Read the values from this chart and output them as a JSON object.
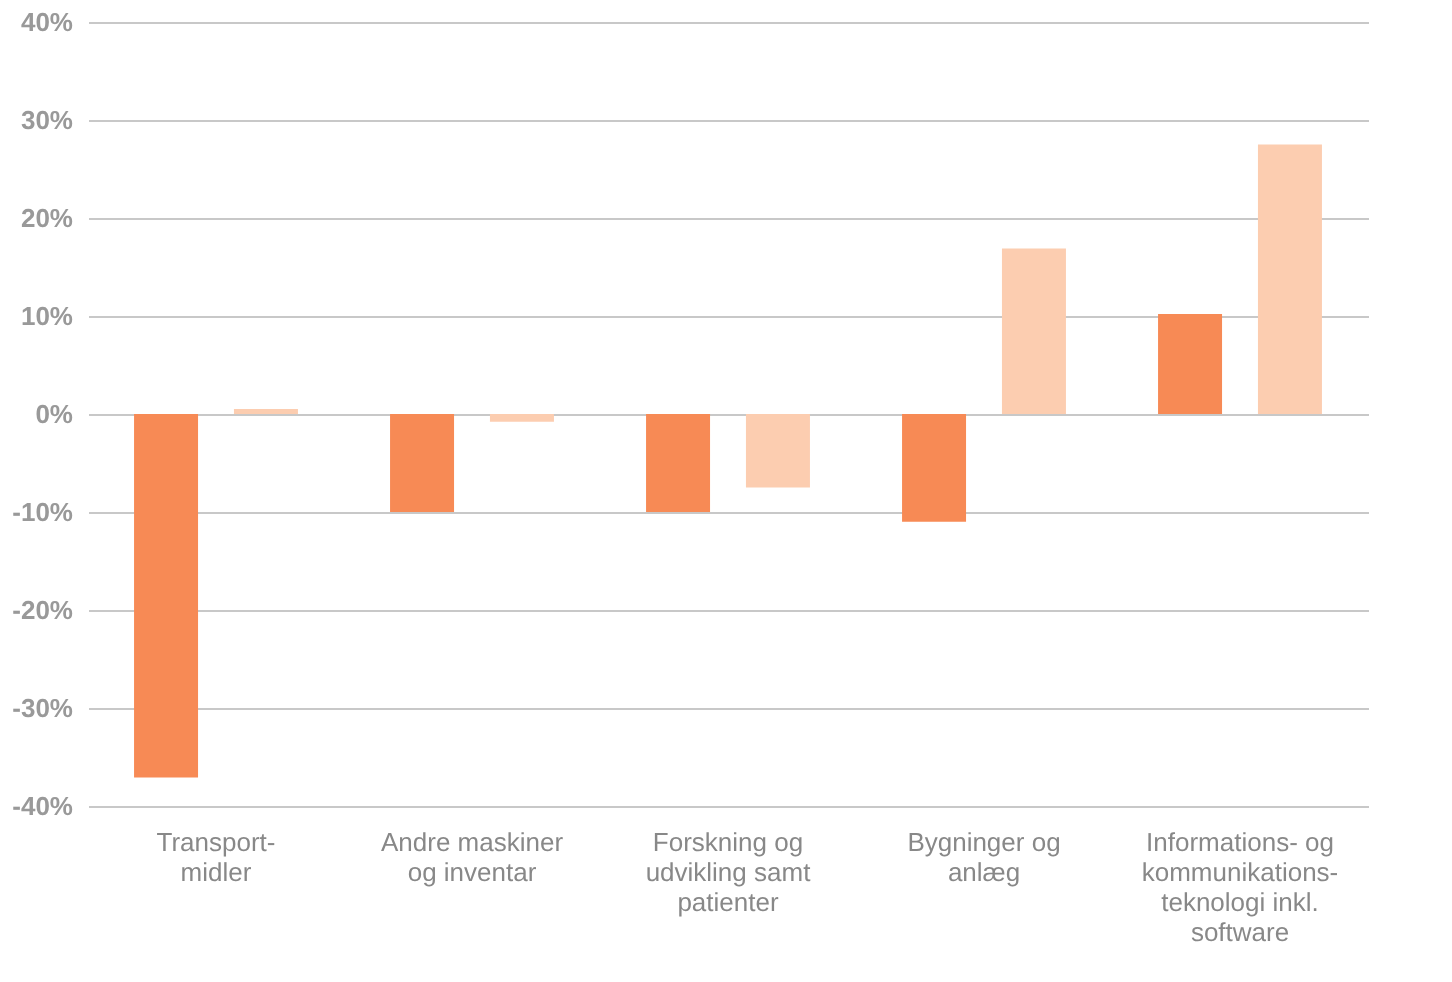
{
  "chart_data": {
    "type": "bar",
    "categories": [
      "Transport- midler",
      "Andre maskiner og inventar",
      "Forskning og udvikling samt patienter",
      "Bygninger og anlæg",
      "Informations- og kommunikations- teknologi inkl. software"
    ],
    "series": [
      {
        "color": "#f78a55",
        "values": [
          -37.1,
          -10,
          -10,
          -11,
          10.2
        ]
      },
      {
        "color": "#fccdb0",
        "values": [
          0.5,
          -0.8,
          -7.5,
          16.9,
          27.5
        ]
      }
    ],
    "ylim": [
      -40,
      40
    ],
    "yticks": [
      {
        "value": -40,
        "label": "-40%"
      },
      {
        "value": -30,
        "label": "-30%"
      },
      {
        "value": -20,
        "label": "-20%"
      },
      {
        "value": -10,
        "label": "-10%"
      },
      {
        "value": 0,
        "label": "0%"
      },
      {
        "value": 10,
        "label": "10%"
      },
      {
        "value": 20,
        "label": "20%"
      },
      {
        "value": 30,
        "label": "30%"
      },
      {
        "value": 40,
        "label": "40%"
      }
    ],
    "grid": "y"
  }
}
